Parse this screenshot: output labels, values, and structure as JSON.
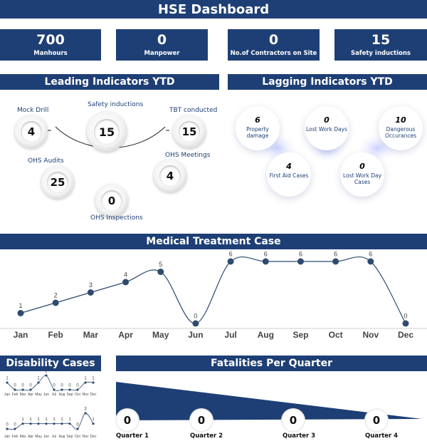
{
  "title": "HSE Dashboard",
  "kpis": [
    {
      "value": "700",
      "label": "Manhours"
    },
    {
      "value": "0",
      "label": "Manpower"
    },
    {
      "value": "0",
      "label": "No.of Contractors on Site"
    },
    {
      "value": "15",
      "label": "Safety inductions"
    }
  ],
  "leading": {
    "title": "Leading Indicators YTD",
    "items": [
      {
        "label": "Mock Drill",
        "value": "4"
      },
      {
        "label": "Safety inductions",
        "value": "15"
      },
      {
        "label": "TBT conducted",
        "value": "15"
      },
      {
        "label": "OHS Audits",
        "value": "25"
      },
      {
        "label": "OHS Meetings",
        "value": "4"
      },
      {
        "label": "OHS Inspections",
        "value": "0"
      }
    ]
  },
  "lagging": {
    "title": "Lagging Indicators YTD",
    "items": [
      {
        "value": "6",
        "label": "Property damage"
      },
      {
        "value": "0",
        "label": "Lost Work Days"
      },
      {
        "value": "10",
        "label": "Dangerous Occurances"
      },
      {
        "value": "4",
        "label": "First Aid Cases"
      },
      {
        "value": "0",
        "label": "Lost Work Day Cases"
      }
    ]
  },
  "medical": {
    "title": "Medical Treatment Case"
  },
  "disability": {
    "title": "Disability Cases"
  },
  "fatalities": {
    "title": "Fatalities Per Quarter",
    "quarters": [
      {
        "label": "Quarter 1",
        "value": "0"
      },
      {
        "label": "Quarter 2",
        "value": "0"
      },
      {
        "label": "Quarter 3",
        "value": "0"
      },
      {
        "label": "Quarter 4",
        "value": "0"
      }
    ]
  },
  "chart_data": [
    {
      "type": "line",
      "title": "Medical Treatment Case",
      "categories": [
        "Jan",
        "Feb",
        "Mar",
        "Apr",
        "May",
        "Jun",
        "Jul",
        "Aug",
        "Sep",
        "Oct",
        "Nov",
        "Dec"
      ],
      "values": [
        1,
        2,
        3,
        4,
        5,
        0,
        6,
        6,
        6,
        6,
        6,
        0
      ],
      "ylim": [
        0,
        6
      ],
      "color": "#2e4a6f",
      "grid": false
    },
    {
      "type": "line",
      "title": "Disability Cases",
      "categories": [
        "Jan",
        "Feb",
        "Mar",
        "Apr",
        "May",
        "Jun",
        "Jul",
        "Aug",
        "Sep",
        "Oct",
        "Nov",
        "Dec"
      ],
      "values": [
        1,
        0,
        0,
        0,
        1,
        2,
        0,
        0,
        0,
        0,
        1,
        1
      ],
      "ylim": [
        0,
        2
      ],
      "color": "#2e4a6f"
    },
    {
      "type": "line",
      "categories": [
        "Jan",
        "Feb",
        "Mar",
        "Apr",
        "May",
        "Jun",
        "Jul",
        "Aug",
        "Sep",
        "Oct",
        "Nov",
        "Dec"
      ],
      "values": [
        0,
        0,
        1,
        1,
        1,
        1,
        1,
        1,
        1,
        0,
        3,
        1
      ],
      "ylim": [
        0,
        3
      ],
      "color": "#2e4a6f"
    }
  ]
}
